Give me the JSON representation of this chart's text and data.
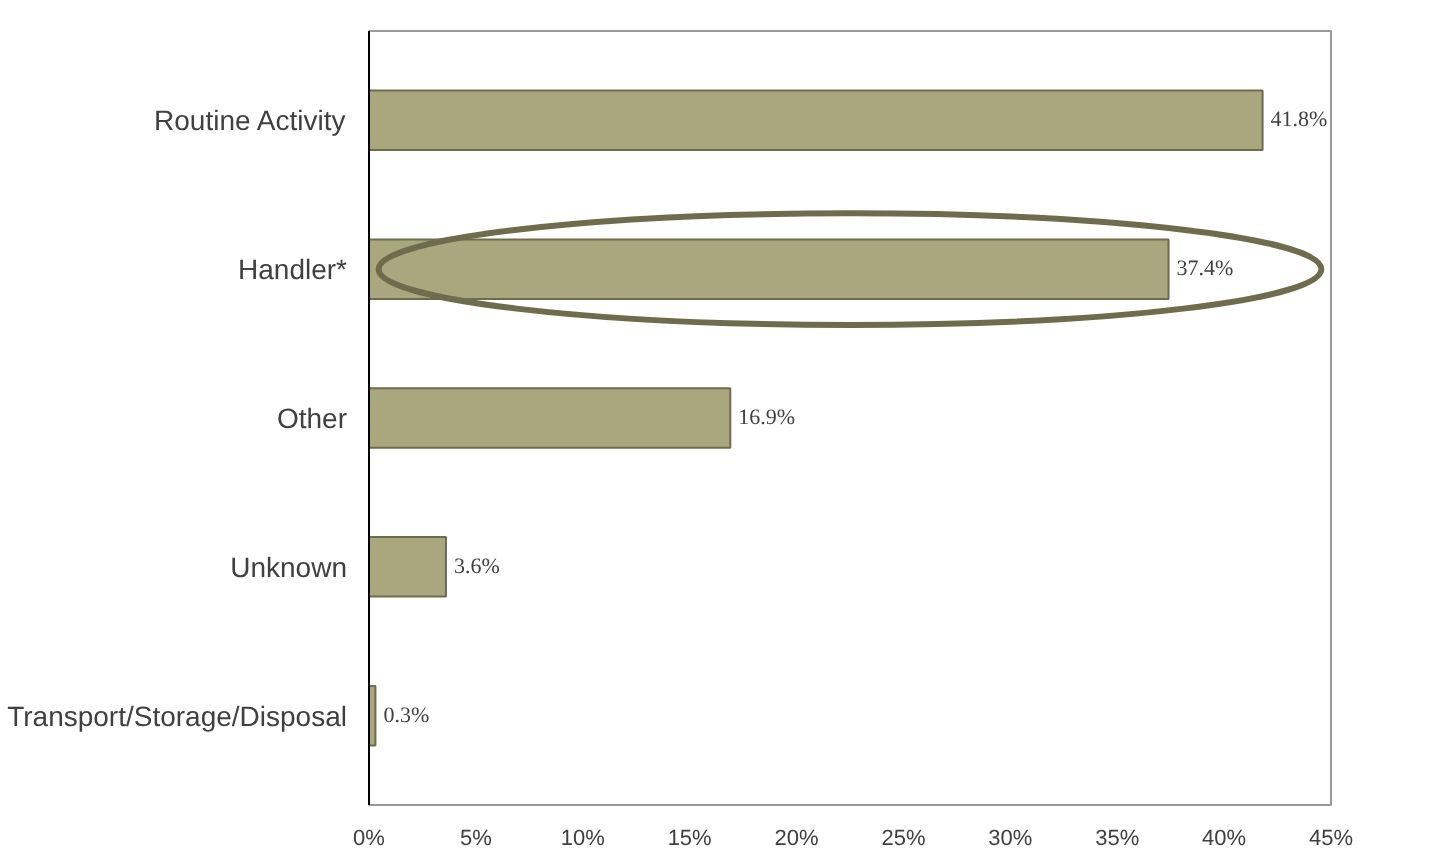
{
  "chart_data": {
    "type": "bar",
    "orientation": "horizontal",
    "categories": [
      "Routine Activity",
      "Handler*",
      "Other",
      "Unknown",
      "Transport/Storage/Disposal"
    ],
    "values": [
      41.8,
      37.4,
      16.9,
      3.6,
      0.3
    ],
    "value_labels": [
      "41.8%",
      "37.4%",
      "16.9%",
      "3.6%",
      "0.3%"
    ],
    "color": "#aaa77e",
    "xlim": [
      0,
      45
    ],
    "xticks": [
      {
        "value": 0,
        "label": "0%"
      },
      {
        "value": 5,
        "label": "5%"
      },
      {
        "value": 10,
        "label": "10%"
      },
      {
        "value": 15,
        "label": "15%"
      },
      {
        "value": 20,
        "label": "20%"
      },
      {
        "value": 25,
        "label": "25%"
      },
      {
        "value": 30,
        "label": "30%"
      },
      {
        "value": 35,
        "label": "35%"
      },
      {
        "value": 40,
        "label": "40%"
      },
      {
        "value": 45,
        "label": "45%"
      }
    ],
    "grid": false
  }
}
